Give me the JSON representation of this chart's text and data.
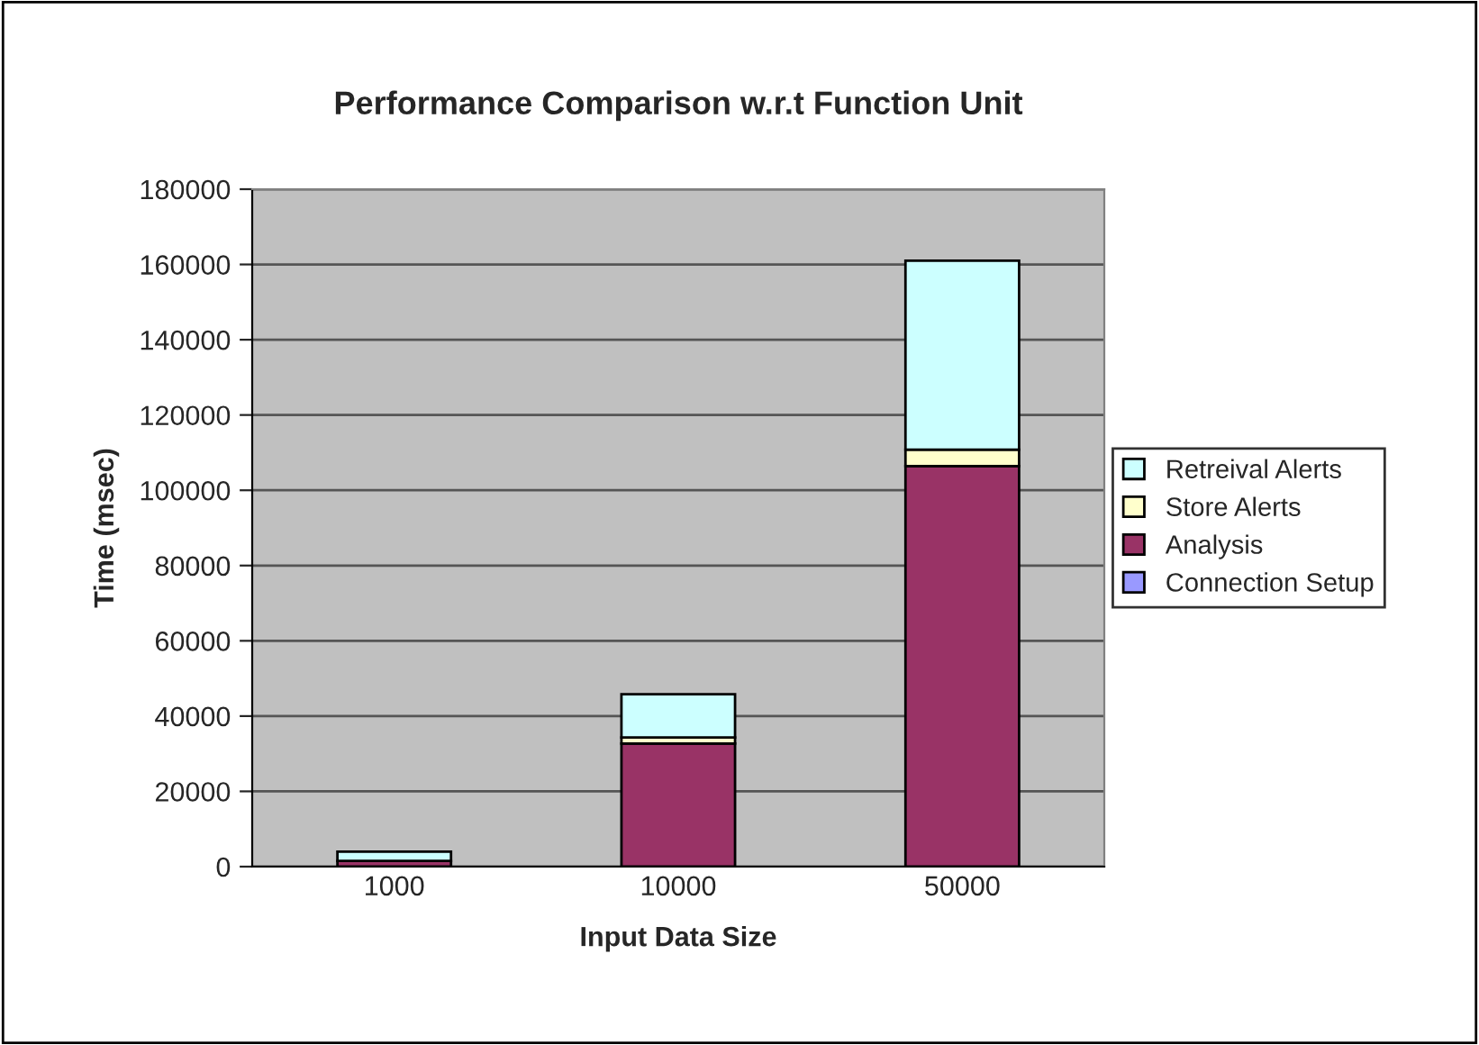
{
  "chart_data": {
    "type": "bar",
    "title": "Performance Comparison w.r.t Function Unit",
    "xlabel": "Input Data Size",
    "ylabel": "Time (msec)",
    "categories": [
      "1000",
      "10000",
      "50000"
    ],
    "stacked": true,
    "series": [
      {
        "name": "Connection Setup",
        "color": "#9999ff",
        "values": [
          null,
          null,
          null
        ]
      },
      {
        "name": "Analysis",
        "color": "#993366",
        "values": [
          1500,
          32700,
          106400
        ]
      },
      {
        "name": "Store Alerts",
        "color": "#ffffcc",
        "values": [
          null,
          1600,
          4400
        ]
      },
      {
        "name": "Retreival Alerts",
        "color": "#ccffff",
        "values": [
          2500,
          11500,
          50200
        ]
      }
    ],
    "ylim": [
      0,
      180000
    ],
    "yticks": [
      0,
      20000,
      40000,
      60000,
      80000,
      100000,
      120000,
      140000,
      160000,
      180000
    ],
    "grid": "y",
    "legend": "right"
  }
}
